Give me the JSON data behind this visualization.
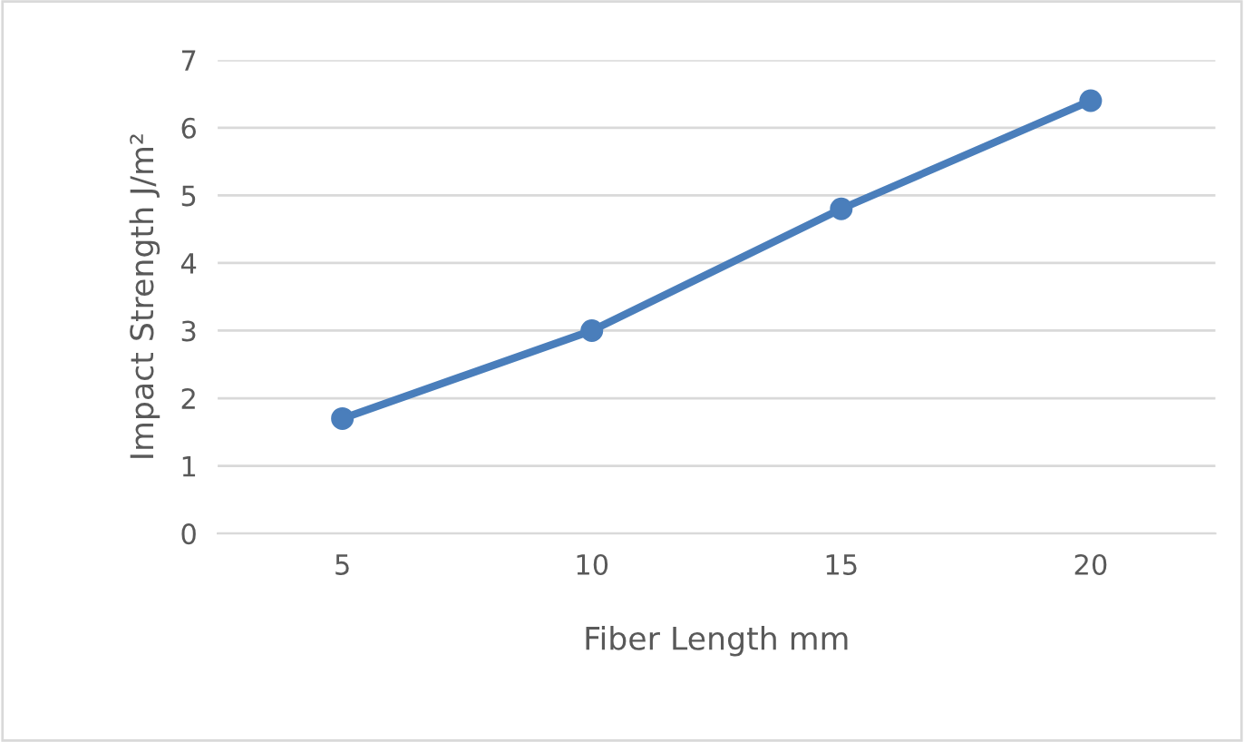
{
  "chart_data": {
    "type": "line",
    "xlabel": "Fiber Length mm",
    "ylabel": "Impact Strength J/m²",
    "categories": [
      "5",
      "10",
      "15",
      "20"
    ],
    "series": [
      {
        "color": "#4a7ebb",
        "values": [
          1.7,
          3.0,
          4.8,
          6.4
        ]
      }
    ],
    "ylim": [
      0,
      7
    ],
    "yticks": [
      0,
      1,
      2,
      3,
      4,
      5,
      6,
      7
    ],
    "grid": "y",
    "marker": "circle",
    "line_style": "solid"
  }
}
